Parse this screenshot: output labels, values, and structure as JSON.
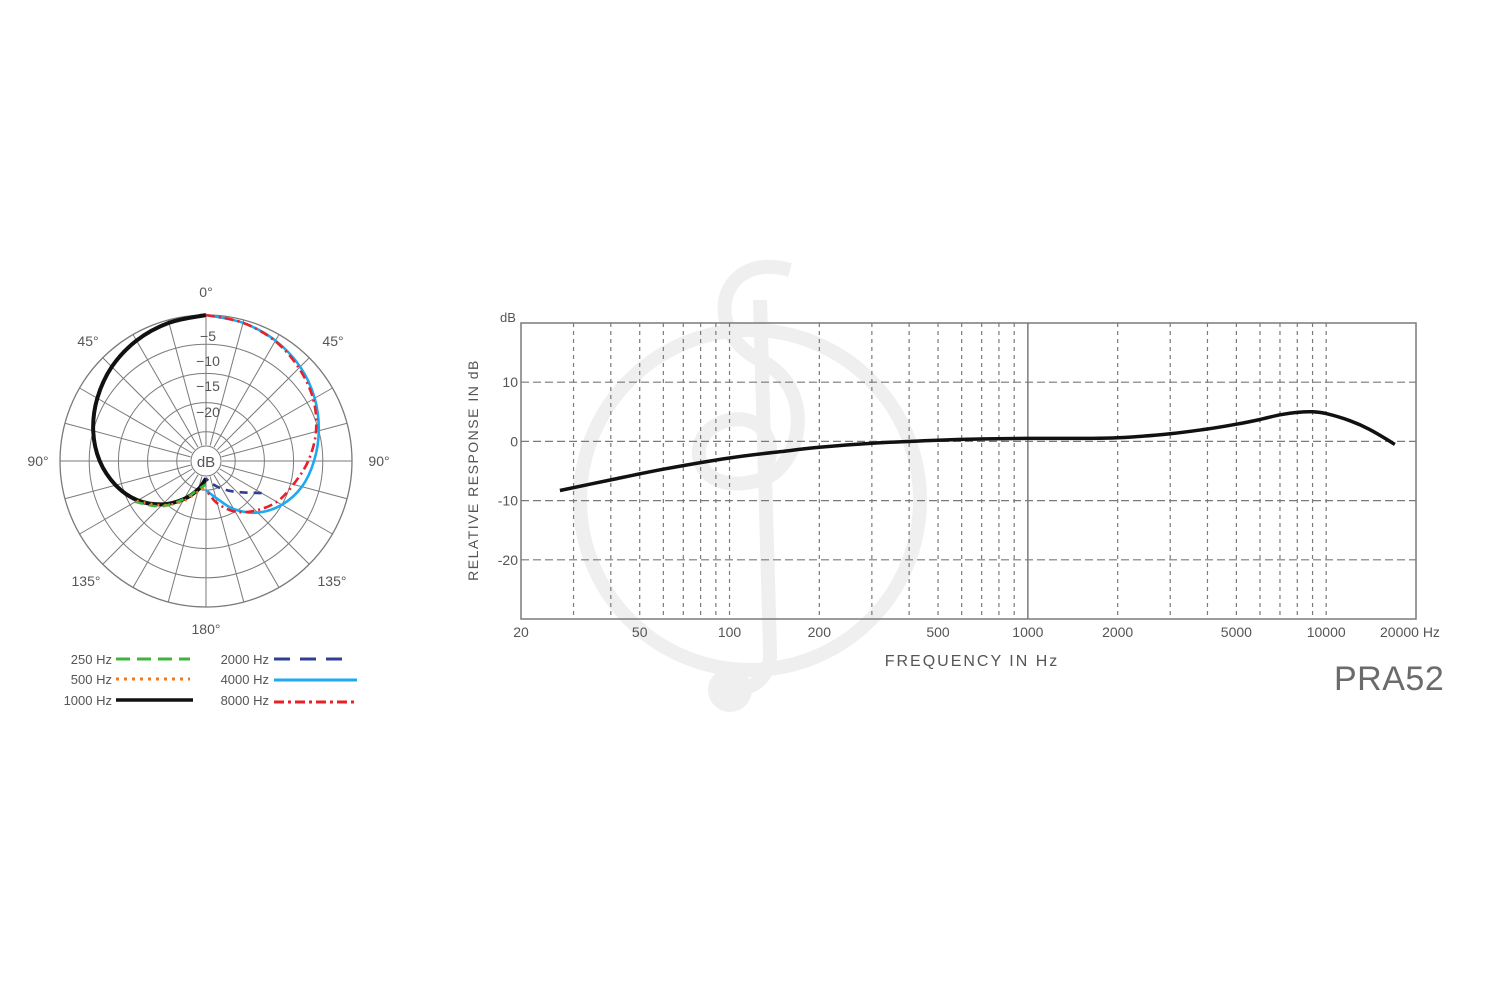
{
  "model": "PRA52",
  "colors": {
    "background": "#ffffff",
    "grid": "#7a7a7a",
    "text": "#555555",
    "watermark": "#efefef"
  },
  "watermark_icon": "treble-clef-in-circle",
  "chart_data": [
    {
      "type": "polar",
      "center_label": "dB",
      "radial_labels": [
        "−5",
        "−10",
        "−15",
        "−20"
      ],
      "angle_labels": [
        "0°",
        "45°",
        "45°",
        "90°",
        "90°",
        "135°",
        "135°",
        "180°"
      ],
      "legend": [
        {
          "label": "250 Hz",
          "color": "#3db53a",
          "style": "dashed"
        },
        {
          "label": "500 Hz",
          "color": "#f07a22",
          "style": "dotted"
        },
        {
          "label": "1000 Hz",
          "color": "#111111",
          "style": "solid"
        },
        {
          "label": "2000 Hz",
          "color": "#2e3f95",
          "style": "dashed"
        },
        {
          "label": "4000 Hz",
          "color": "#1eaaf0",
          "style": "solid"
        },
        {
          "label": "8000 Hz",
          "color": "#e8202a",
          "style": "dash-dot"
        }
      ],
      "series": [
        {
          "name": "1000 Hz",
          "angles": [
            0,
            15,
            30,
            45,
            60,
            75,
            90,
            105,
            120,
            135,
            150,
            165,
            180
          ],
          "values": [
            0,
            -0.5,
            -1.2,
            -2.2,
            -3.5,
            -5,
            -6.8,
            -9,
            -11.5,
            -14.5,
            -17.5,
            -20,
            -22
          ]
        },
        {
          "name": "250 Hz",
          "angles": [
            120,
            135,
            150,
            165,
            180
          ],
          "values": [
            -11,
            -14,
            -17.5,
            -20,
            -21
          ]
        },
        {
          "name": "500 Hz",
          "angles": [
            120,
            135,
            150,
            165,
            180
          ],
          "values": [
            -11.3,
            -14.3,
            -17,
            -19.5,
            -20.5
          ]
        },
        {
          "name": "4000 Hz",
          "angles": [
            0,
            15,
            30,
            45,
            60,
            75,
            90,
            105,
            120,
            135,
            150,
            165,
            180
          ],
          "values": [
            0,
            -0.5,
            -1.2,
            -2.2,
            -3.5,
            -5,
            -6.5,
            -8,
            -10,
            -12.5,
            -15.5,
            -18.5,
            -20
          ]
        },
        {
          "name": "8000 Hz",
          "angles": [
            0,
            15,
            30,
            45,
            60,
            75,
            90,
            105,
            120,
            135,
            150,
            165,
            180
          ],
          "values": [
            0,
            -0.5,
            -1.3,
            -2.5,
            -3.8,
            -5.5,
            -7.5,
            -9.5,
            -11,
            -13,
            -15,
            -17.5,
            -20
          ]
        },
        {
          "name": "2000 Hz",
          "angles": [
            120,
            135,
            150,
            165,
            180
          ],
          "values": [
            -14,
            -17.5,
            -19.5,
            -21,
            -22
          ]
        }
      ]
    },
    {
      "type": "line",
      "xlabel": "FREQUENCY IN Hz",
      "ylabel": "RELATIVE RESPONSE IN dB",
      "y_unit_label": "dB",
      "x_scale": "log",
      "xlim": [
        20,
        20000
      ],
      "ylim": [
        -30,
        20
      ],
      "x_tick_labels": [
        {
          "value": 20,
          "label": "20"
        },
        {
          "value": 50,
          "label": "50"
        },
        {
          "value": 100,
          "label": "100"
        },
        {
          "value": 200,
          "label": "200"
        },
        {
          "value": 500,
          "label": "500"
        },
        {
          "value": 1000,
          "label": "1000"
        },
        {
          "value": 2000,
          "label": "2000"
        },
        {
          "value": 5000,
          "label": "5000"
        },
        {
          "value": 10000,
          "label": "10000"
        },
        {
          "value": 20000,
          "label": "20000 Hz"
        }
      ],
      "y_tick_labels": [
        {
          "value": 10,
          "label": "10"
        },
        {
          "value": 0,
          "label": "0"
        },
        {
          "value": -10,
          "label": "-10"
        },
        {
          "value": -20,
          "label": "-20"
        }
      ],
      "grid": true,
      "series": [
        {
          "x": [
            27,
            40,
            60,
            100,
            150,
            200,
            300,
            500,
            700,
            1000,
            1500,
            2000,
            3000,
            4000,
            5000,
            6000,
            7000,
            8000,
            9000,
            10000,
            12000,
            14000,
            17000
          ],
          "y": [
            -8.3,
            -6.5,
            -4.7,
            -2.8,
            -1.7,
            -1.0,
            -0.3,
            0.2,
            0.4,
            0.5,
            0.5,
            0.6,
            1.3,
            2.1,
            2.9,
            3.7,
            4.5,
            4.9,
            5.0,
            4.7,
            3.5,
            2.0,
            -0.5
          ]
        }
      ]
    }
  ]
}
